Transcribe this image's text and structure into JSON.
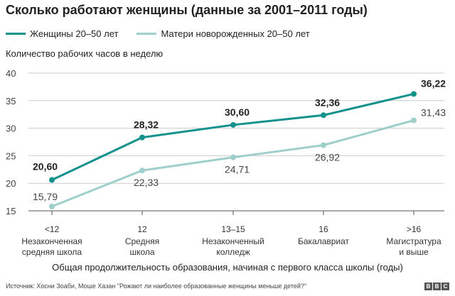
{
  "chart_data": {
    "type": "line",
    "title": "Сколько работают женщины (данные за 2001–2011 годы)",
    "ylabel": "Количество рабочих часов в неделю",
    "xlabel": "Общая продолжительность образования, начиная с первого класса школы (годы)",
    "ylim": [
      15,
      40
    ],
    "yticks": [
      "15",
      "20",
      "25",
      "30",
      "35",
      "40"
    ],
    "categories": [
      {
        "top": "<12",
        "sub": [
          "Незаконченная",
          "средняя школа"
        ]
      },
      {
        "top": "12",
        "sub": [
          "Средняя",
          "школа"
        ]
      },
      {
        "top": "13–15",
        "sub": [
          "Незаконченный",
          "колледж"
        ]
      },
      {
        "top": "16",
        "sub": [
          "Бакалавриат"
        ]
      },
      {
        "top": ">16",
        "sub": [
          "Магистратура",
          "и выше"
        ]
      }
    ],
    "series": [
      {
        "name": "Женщины 20–50 лет",
        "color": "#13918d",
        "values": [
          20.6,
          28.32,
          30.6,
          32.36,
          36.22
        ],
        "labels": [
          "20,60",
          "28,32",
          "30,60",
          "32,36",
          "36,22"
        ]
      },
      {
        "name": "Матери новорожденных 20–50 лет",
        "color": "#9fcfcb",
        "values": [
          15.79,
          22.33,
          24.71,
          26.92,
          31.43
        ],
        "labels": [
          "15,79",
          "22,33",
          "24,71",
          "26,92",
          "31,43"
        ]
      }
    ],
    "grid": true,
    "legend": "top-left"
  },
  "source": "Источник: Хосни Зоаби, Моше Хазан \"Рожают ли наиболее образованные женщины меньше детей?\"",
  "logo": "BBC"
}
